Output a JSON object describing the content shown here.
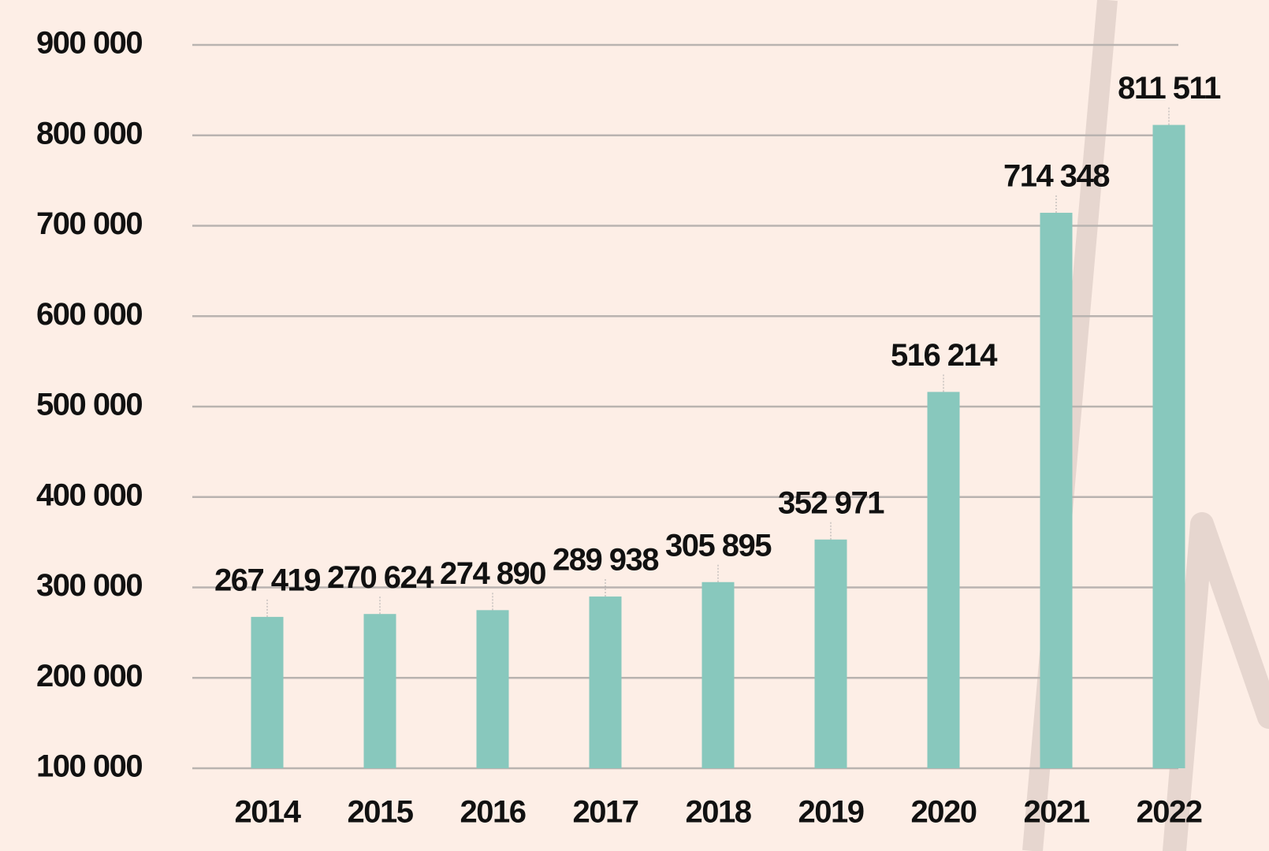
{
  "chart_data": {
    "type": "bar",
    "categories": [
      "2014",
      "2015",
      "2016",
      "2017",
      "2018",
      "2019",
      "2020",
      "2021",
      "2022"
    ],
    "values": [
      267419,
      270624,
      274890,
      289938,
      305895,
      352971,
      516214,
      714348,
      811511
    ],
    "value_labels": [
      "267 419",
      "270 624",
      "274 890",
      "289 938",
      "305 895",
      "352 971",
      "516 214",
      "714 348",
      "811 511"
    ],
    "color": "#88c8bd",
    "ylim": [
      100000,
      900000
    ],
    "yticks": [
      {
        "value": 100000,
        "label": "100 000"
      },
      {
        "value": 200000,
        "label": "200 000"
      },
      {
        "value": 300000,
        "label": "300 000"
      },
      {
        "value": 400000,
        "label": "400 000"
      },
      {
        "value": 500000,
        "label": "500 000"
      },
      {
        "value": 600000,
        "label": "600 000"
      },
      {
        "value": 700000,
        "label": "700 000"
      },
      {
        "value": 800000,
        "label": "800 000"
      },
      {
        "value": 900000,
        "label": "900 000"
      }
    ],
    "grid": true
  }
}
